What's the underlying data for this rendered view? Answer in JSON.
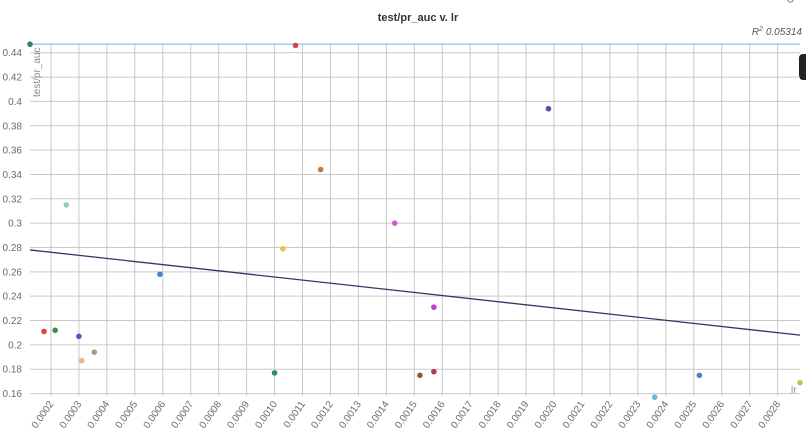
{
  "chart_data": {
    "type": "scatter",
    "title": "test/pr_auc v. lr",
    "xlabel": "lr",
    "ylabel": "test/pr_auc",
    "r2_prefix": "R",
    "r2_exp": "2",
    "r2_value": "0.05314",
    "xlim": [
      0.000125,
      0.00288
    ],
    "ylim": [
      0.158,
      0.448
    ],
    "x_ticks": [
      "0.0002",
      "0.0003",
      "0.0004",
      "0.0005",
      "0.0006",
      "0.0007",
      "0.0008",
      "0.0009",
      "0.0010",
      "0.0011",
      "0.0012",
      "0.0013",
      "0.0014",
      "0.0015",
      "0.0016",
      "0.0017",
      "0.0018",
      "0.0019",
      "0.0020",
      "0.0021",
      "0.0022",
      "0.0023",
      "0.0024",
      "0.0025",
      "0.0026",
      "0.0027",
      "0.0028"
    ],
    "y_ticks": [
      "0.16",
      "0.18",
      "0.2",
      "0.22",
      "0.24",
      "0.26",
      "0.28",
      "0.3",
      "0.32",
      "0.34",
      "0.36",
      "0.38",
      "0.4",
      "0.42",
      "0.44"
    ],
    "grid": true,
    "trendline": {
      "x": [
        0.000125,
        0.00288
      ],
      "y": [
        0.278,
        0.208
      ],
      "color": "#2e3a66"
    },
    "reference_line": {
      "y": 0.447,
      "color": "#9fd0e6"
    },
    "points": [
      {
        "x": 0.000125,
        "y": 0.447,
        "color": "#2e8b57"
      },
      {
        "x": 0.000175,
        "y": 0.211,
        "color": "#d9434a"
      },
      {
        "x": 0.000215,
        "y": 0.212,
        "color": "#3a8f4a"
      },
      {
        "x": 0.000255,
        "y": 0.315,
        "color": "#8fd0b8"
      },
      {
        "x": 0.0003,
        "y": 0.207,
        "color": "#6a4fc0"
      },
      {
        "x": 0.00031,
        "y": 0.187,
        "color": "#e8b48a"
      },
      {
        "x": 0.000355,
        "y": 0.194,
        "color": "#a99a8a"
      },
      {
        "x": 0.00059,
        "y": 0.258,
        "color": "#4f7fd0"
      },
      {
        "x": 0.001,
        "y": 0.177,
        "color": "#2e8a6e"
      },
      {
        "x": 0.00103,
        "y": 0.279,
        "color": "#f2c04f"
      },
      {
        "x": 0.001075,
        "y": 0.446,
        "color": "#d9434a"
      },
      {
        "x": 0.001165,
        "y": 0.344,
        "color": "#c87a3a"
      },
      {
        "x": 0.00143,
        "y": 0.3,
        "color": "#d85ad8"
      },
      {
        "x": 0.00152,
        "y": 0.175,
        "color": "#8a5a2e"
      },
      {
        "x": 0.00157,
        "y": 0.231,
        "color": "#cc3acc"
      },
      {
        "x": 0.00157,
        "y": 0.178,
        "color": "#c0344a"
      },
      {
        "x": 0.00198,
        "y": 0.394,
        "color": "#5a4fb0"
      },
      {
        "x": 0.00236,
        "y": 0.157,
        "color": "#6ab8e0"
      },
      {
        "x": 0.00252,
        "y": 0.175,
        "color": "#4f7fd0"
      },
      {
        "x": 0.00288,
        "y": 0.169,
        "color": "#b8c84a"
      }
    ]
  }
}
